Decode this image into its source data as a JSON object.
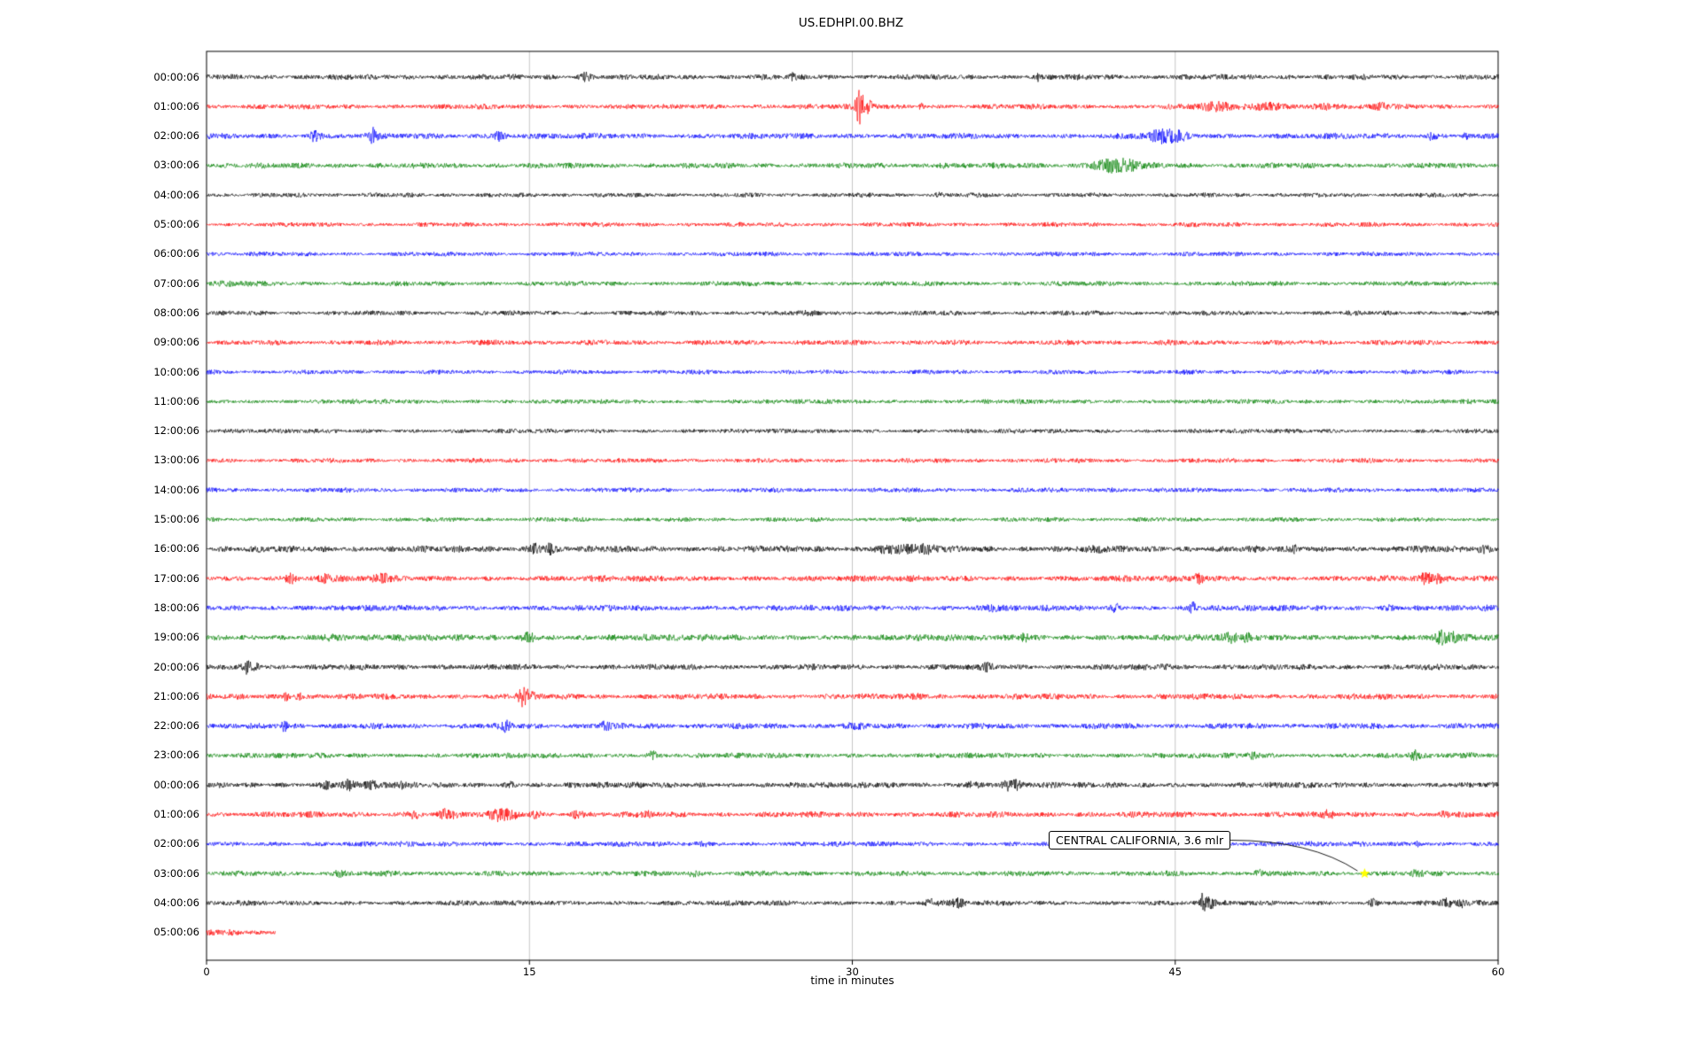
{
  "annotation": {
    "text": "CENTRAL CALIFORNIA, 3.6 mlr",
    "marker_row": 27,
    "marker_minute": 53.8,
    "marker_color": "#ffff00"
  },
  "chart_data": {
    "type": "line",
    "title": "US.EDHPI.00.BHZ",
    "xlabel": "time in minutes",
    "xlim": [
      0,
      60
    ],
    "x_ticks": [
      0,
      15,
      30,
      45,
      60
    ],
    "grid_minutes": [
      15,
      30,
      45
    ],
    "grid_color": "#b8b8b8",
    "trace_colors": {
      "black": "#000000",
      "red": "#ff0000",
      "blue": "#0000ff",
      "green": "#008000"
    },
    "rows": [
      {
        "label": "00:00:06",
        "color": "black",
        "base": 3.2,
        "events": [
          [
            17.6,
            4,
            0.25
          ],
          [
            27.2,
            2.5,
            0.1
          ],
          [
            38.6,
            3,
            0.08
          ]
        ]
      },
      {
        "label": "01:00:06",
        "color": "red",
        "base": 3.0,
        "events": [
          [
            30.3,
            17,
            0.18
          ],
          [
            30.7,
            7,
            0.3
          ],
          [
            33.2,
            3.5,
            0.12
          ],
          [
            47,
            3,
            1.2
          ],
          [
            49.5,
            3.5,
            0.8
          ],
          [
            52,
            3,
            0.6
          ],
          [
            54.5,
            3,
            0.3
          ]
        ]
      },
      {
        "label": "02:00:06",
        "color": "blue",
        "base": 3.4,
        "events": [
          [
            5.0,
            5,
            0.25
          ],
          [
            7.7,
            7,
            0.2
          ],
          [
            13.6,
            4.5,
            0.3
          ],
          [
            44.4,
            6,
            0.7
          ],
          [
            45.3,
            3,
            0.4
          ],
          [
            56.9,
            3.5,
            0.2
          ],
          [
            58.5,
            2.5,
            0.15
          ]
        ]
      },
      {
        "label": "03:00:06",
        "color": "green",
        "base": 3.2,
        "events": [
          [
            34.2,
            2,
            0.3
          ],
          [
            41.8,
            5.5,
            0.8
          ],
          [
            42.8,
            4.5,
            0.6
          ]
        ]
      },
      {
        "label": "04:00:06",
        "color": "black",
        "base": 2.6,
        "events": [
          [
            7.5,
            1.5,
            0.3
          ],
          [
            34,
            1.5,
            0.2
          ]
        ]
      },
      {
        "label": "05:00:06",
        "color": "red",
        "base": 2.6,
        "events": []
      },
      {
        "label": "06:00:06",
        "color": "blue",
        "base": 2.6,
        "events": []
      },
      {
        "label": "07:00:06",
        "color": "green",
        "base": 2.8,
        "events": [
          [
            1.5,
            1.5,
            0.8
          ]
        ]
      },
      {
        "label": "08:00:06",
        "color": "black",
        "base": 2.7,
        "events": [
          [
            28,
            1,
            0.5
          ]
        ]
      },
      {
        "label": "09:00:06",
        "color": "red",
        "base": 3.0,
        "events": []
      },
      {
        "label": "10:00:06",
        "color": "blue",
        "base": 2.6,
        "events": []
      },
      {
        "label": "11:00:06",
        "color": "green",
        "base": 2.7,
        "events": []
      },
      {
        "label": "12:00:06",
        "color": "black",
        "base": 2.6,
        "events": []
      },
      {
        "label": "13:00:06",
        "color": "red",
        "base": 2.6,
        "events": [
          [
            17,
            1,
            0.4
          ]
        ]
      },
      {
        "label": "14:00:06",
        "color": "blue",
        "base": 2.7,
        "events": [
          [
            42,
            1.5,
            0.3
          ]
        ]
      },
      {
        "label": "15:00:06",
        "color": "green",
        "base": 2.6,
        "events": []
      },
      {
        "label": "16:00:06",
        "color": "black",
        "base": 3.8,
        "events": [
          [
            15.2,
            5.5,
            0.3
          ],
          [
            15.9,
            4.5,
            0.25
          ],
          [
            31.5,
            3,
            0.6
          ],
          [
            32.5,
            3.5,
            0.5
          ],
          [
            33.5,
            3,
            0.4
          ],
          [
            41.5,
            2,
            0.3
          ],
          [
            50.5,
            2.5,
            0.2
          ],
          [
            59.3,
            3.5,
            0.3
          ]
        ]
      },
      {
        "label": "17:00:06",
        "color": "red",
        "base": 3.6,
        "events": [
          [
            3.9,
            5,
            0.2
          ],
          [
            5.5,
            3,
            0.3
          ],
          [
            8.1,
            3.5,
            0.4
          ],
          [
            46.1,
            4.5,
            0.25
          ],
          [
            56.6,
            5,
            0.25
          ],
          [
            57.2,
            3,
            0.2
          ]
        ]
      },
      {
        "label": "18:00:06",
        "color": "blue",
        "base": 3.4,
        "events": [
          [
            36.6,
            2.5,
            0.4
          ],
          [
            42.2,
            4.5,
            0.15
          ],
          [
            45.8,
            6,
            0.15
          ],
          [
            55,
            2,
            0.3
          ]
        ]
      },
      {
        "label": "19:00:06",
        "color": "green",
        "base": 3.8,
        "events": [
          [
            5.6,
            3,
            0.3
          ],
          [
            15.0,
            4.5,
            0.35
          ],
          [
            38.0,
            4,
            0.2
          ],
          [
            47.6,
            4.5,
            0.25
          ],
          [
            48.3,
            3,
            0.2
          ],
          [
            57.4,
            6,
            0.3
          ],
          [
            57.9,
            4,
            0.2
          ]
        ]
      },
      {
        "label": "20:00:06",
        "color": "black",
        "base": 3.4,
        "events": [
          [
            1.9,
            6.5,
            0.2
          ],
          [
            2.3,
            4,
            0.15
          ],
          [
            36.3,
            4.5,
            0.2
          ],
          [
            44.5,
            2,
            0.3
          ]
        ]
      },
      {
        "label": "21:00:06",
        "color": "red",
        "base": 3.4,
        "events": [
          [
            3.7,
            9,
            0.12
          ],
          [
            4.3,
            3,
            0.2
          ],
          [
            14.6,
            8,
            0.18
          ],
          [
            14.9,
            5,
            0.3
          ],
          [
            33,
            2,
            0.3
          ]
        ]
      },
      {
        "label": "22:00:06",
        "color": "blue",
        "base": 3.4,
        "events": [
          [
            3.6,
            5,
            0.15
          ],
          [
            13.9,
            5,
            0.2
          ],
          [
            18.5,
            4,
            0.2
          ],
          [
            30,
            1.5,
            0.4
          ]
        ]
      },
      {
        "label": "23:00:06",
        "color": "green",
        "base": 3.1,
        "events": [
          [
            20.7,
            4,
            0.25
          ],
          [
            48.6,
            3,
            0.3
          ],
          [
            56.1,
            4,
            0.2
          ],
          [
            58.8,
            2.5,
            0.2
          ]
        ]
      },
      {
        "label": "00:00:06",
        "color": "black",
        "base": 3.4,
        "events": [
          [
            5.6,
            4,
            0.3
          ],
          [
            6.6,
            4,
            0.35
          ],
          [
            7.6,
            3,
            0.3
          ],
          [
            9,
            2.5,
            0.25
          ],
          [
            14.1,
            2.5,
            0.2
          ],
          [
            35.6,
            3.5,
            0.3
          ],
          [
            37.2,
            6,
            0.25
          ],
          [
            37.6,
            4,
            0.2
          ]
        ]
      },
      {
        "label": "01:00:06",
        "color": "red",
        "base": 3.4,
        "events": [
          [
            9.6,
            4,
            0.3
          ],
          [
            11.2,
            4.5,
            0.35
          ],
          [
            13.6,
            5.5,
            0.4
          ],
          [
            14.2,
            4,
            0.3
          ],
          [
            15.3,
            3,
            0.25
          ],
          [
            17.2,
            3.5,
            0.3
          ],
          [
            20.5,
            2.5,
            0.2
          ],
          [
            52.1,
            3.5,
            0.25
          ],
          [
            57.5,
            2.5,
            0.2
          ]
        ]
      },
      {
        "label": "02:00:06",
        "color": "blue",
        "base": 3.0,
        "events": [
          [
            23,
            1.5,
            0.3
          ],
          [
            56.2,
            2.5,
            0.2
          ]
        ]
      },
      {
        "label": "03:00:06",
        "color": "green",
        "base": 3.1,
        "events": [
          [
            6.2,
            2.5,
            0.25
          ],
          [
            22.6,
            3,
            0.25
          ],
          [
            36,
            1.5,
            0.3
          ],
          [
            48.9,
            3,
            0.25
          ],
          [
            56.2,
            3,
            0.25
          ]
        ]
      },
      {
        "label": "04:00:06",
        "color": "black",
        "base": 3.0,
        "events": [
          [
            33.6,
            3.5,
            0.3
          ],
          [
            34.9,
            3.5,
            0.3
          ],
          [
            46.3,
            13,
            0.12
          ],
          [
            46.6,
            4,
            0.3
          ],
          [
            54.2,
            3.5,
            0.2
          ],
          [
            57.6,
            4.5,
            0.25
          ],
          [
            58.3,
            3.5,
            0.2
          ]
        ]
      },
      {
        "label": "05:00:06",
        "color": "red",
        "base": 3.0,
        "extent": 0.053,
        "events": [
          [
            1.2,
            1.5,
            0.3
          ]
        ]
      }
    ]
  }
}
